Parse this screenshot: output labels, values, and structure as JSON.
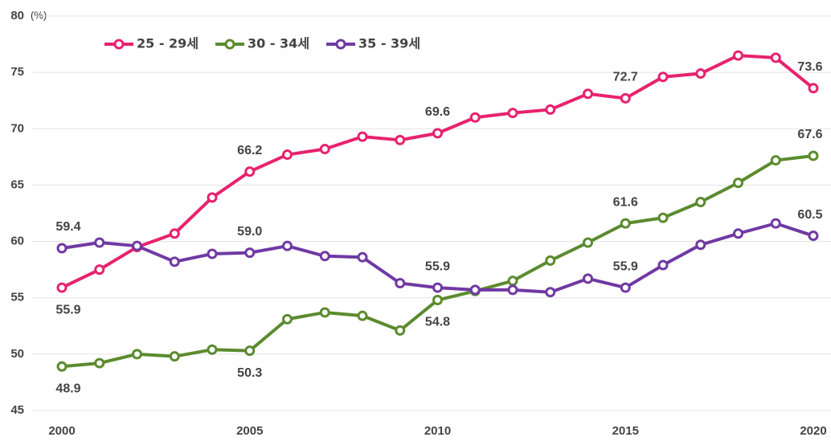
{
  "chart_data": {
    "type": "line",
    "y_unit": "(%)",
    "x": [
      2000,
      2001,
      2002,
      2003,
      2004,
      2005,
      2006,
      2007,
      2008,
      2009,
      2010,
      2011,
      2012,
      2013,
      2014,
      2015,
      2016,
      2017,
      2018,
      2019,
      2020
    ],
    "xlim": [
      2000,
      2020
    ],
    "xticks": [
      2000,
      2005,
      2010,
      2015,
      2020
    ],
    "ylim": [
      45,
      80
    ],
    "yticks": [
      45,
      50,
      55,
      60,
      65,
      70,
      75,
      80
    ],
    "grid": true,
    "legend": "top-left",
    "series": [
      {
        "name": "25 - 29세",
        "color": "#e8226f",
        "values": [
          55.9,
          57.5,
          59.5,
          60.7,
          63.9,
          66.2,
          67.7,
          68.2,
          69.3,
          69.0,
          69.6,
          71.0,
          71.4,
          71.7,
          73.1,
          72.7,
          74.6,
          74.9,
          76.5,
          76.3,
          73.6
        ],
        "value_labels": [
          "55.9",
          null,
          null,
          null,
          null,
          "66.2",
          null,
          null,
          null,
          null,
          "69.6",
          null,
          null,
          null,
          null,
          "72.7",
          null,
          null,
          null,
          null,
          "73.6"
        ]
      },
      {
        "name": "30 - 34세",
        "color": "#5b8b2f",
        "values": [
          48.9,
          49.2,
          50.0,
          49.8,
          50.4,
          50.3,
          53.1,
          53.7,
          53.4,
          52.1,
          54.8,
          55.6,
          56.5,
          58.3,
          59.9,
          61.6,
          62.1,
          63.5,
          65.2,
          67.2,
          67.6
        ],
        "value_labels": [
          "48.9",
          null,
          null,
          null,
          null,
          "50.3",
          null,
          null,
          null,
          null,
          "54.8",
          null,
          null,
          null,
          null,
          "61.6",
          null,
          null,
          null,
          null,
          "67.6"
        ]
      },
      {
        "name": "35 - 39세",
        "color": "#7039a3",
        "values": [
          59.4,
          59.9,
          59.6,
          58.2,
          58.9,
          59.0,
          59.6,
          58.7,
          58.6,
          56.3,
          55.9,
          55.7,
          55.7,
          55.5,
          56.7,
          55.9,
          57.9,
          59.7,
          60.7,
          61.6,
          60.5
        ],
        "value_labels": [
          "59.4",
          null,
          null,
          null,
          null,
          "59.0",
          null,
          null,
          null,
          null,
          "55.9",
          null,
          null,
          null,
          null,
          "55.9",
          null,
          null,
          null,
          null,
          "60.5"
        ]
      }
    ]
  }
}
